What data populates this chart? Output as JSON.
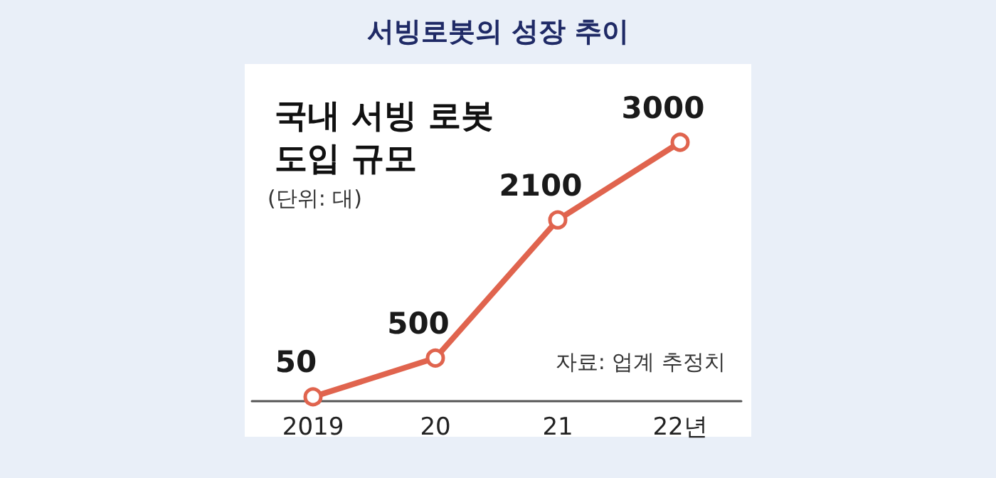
{
  "chart_data": {
    "type": "line",
    "title": "서빙로봇의 성장 추이",
    "subtitle": "국내 서빙 로봇\n도입 규모",
    "annotations": [
      "(단위: 대)",
      "자료: 업계 추정치"
    ],
    "categories": [
      "2019",
      "20",
      "21",
      "22년"
    ],
    "series": [
      {
        "color": "#e0644e",
        "values": [
          50,
          500,
          2100,
          3000
        ]
      }
    ],
    "data_labels": true,
    "marker": "circle",
    "line_style": "solid"
  }
}
